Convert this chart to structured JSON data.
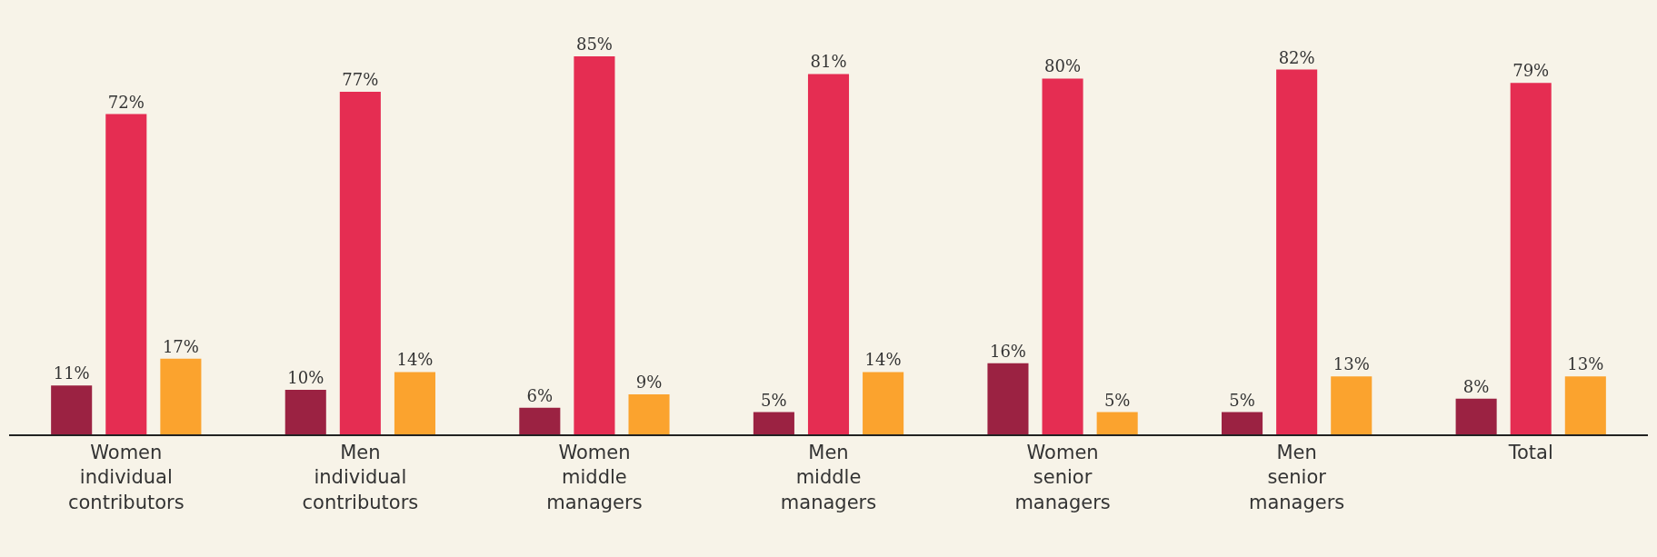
{
  "chart_data": {
    "type": "bar",
    "categories": [
      "Women individual contributors",
      "Men individual contributors",
      "Women middle managers",
      "Men middle managers",
      "Women senior managers",
      "Men senior managers",
      "Total"
    ],
    "series": [
      {
        "color": "#9b2242",
        "values": [
          11,
          10,
          6,
          5,
          16,
          5,
          8
        ],
        "value_labels": [
          "11%",
          "10%",
          "6%",
          "5%",
          "16%",
          "5%",
          "8%"
        ]
      },
      {
        "color": "#e52d52",
        "values": [
          72,
          77,
          85,
          81,
          80,
          82,
          79
        ],
        "value_labels": [
          "72%",
          "77%",
          "85%",
          "81%",
          "80%",
          "82%",
          "79%"
        ]
      },
      {
        "color": "#fba32e",
        "values": [
          17,
          14,
          9,
          14,
          5,
          13,
          13
        ],
        "value_labels": [
          "17%",
          "14%",
          "9%",
          "14%",
          "5%",
          "13%",
          "13%"
        ]
      }
    ]
  }
}
